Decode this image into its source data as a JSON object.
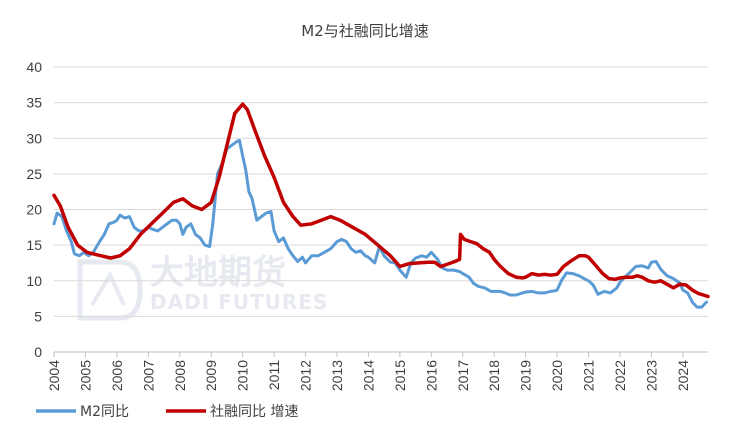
{
  "chart_data": {
    "type": "line",
    "title": "M2与社融同比增速",
    "watermark": {
      "cn": "大地期货",
      "en": "DADI FUTURES"
    },
    "x_ticks": [
      "2004",
      "2005",
      "2006",
      "2007",
      "2008",
      "2009",
      "2010",
      "2011",
      "2012",
      "2013",
      "2014",
      "2015",
      "2016",
      "2017",
      "2018",
      "2019",
      "2020",
      "2021",
      "2022",
      "2023",
      "2024"
    ],
    "y_ticks": [
      "0",
      "5",
      "10",
      "15",
      "20",
      "25",
      "30",
      "35",
      "40"
    ],
    "xlim": [
      2004,
      2024.8
    ],
    "ylim": [
      0,
      40
    ],
    "grid": "horizontal",
    "legend_position": "bottom-left",
    "series": [
      {
        "name": "M2同比",
        "color": "#5b9bd5",
        "points": [
          [
            2004.0,
            18.0
          ],
          [
            2004.1,
            19.5
          ],
          [
            2004.25,
            19.0
          ],
          [
            2004.4,
            17.0
          ],
          [
            2004.55,
            15.5
          ],
          [
            2004.65,
            13.8
          ],
          [
            2004.8,
            13.5
          ],
          [
            2004.95,
            14.0
          ],
          [
            2005.1,
            13.5
          ],
          [
            2005.25,
            14.0
          ],
          [
            2005.45,
            15.5
          ],
          [
            2005.6,
            16.5
          ],
          [
            2005.75,
            18.0
          ],
          [
            2005.9,
            18.2
          ],
          [
            2006.0,
            18.5
          ],
          [
            2006.1,
            19.2
          ],
          [
            2006.25,
            18.8
          ],
          [
            2006.4,
            19.0
          ],
          [
            2006.55,
            17.5
          ],
          [
            2006.7,
            17.0
          ],
          [
            2006.85,
            17.0
          ],
          [
            2007.0,
            17.5
          ],
          [
            2007.15,
            17.2
          ],
          [
            2007.3,
            17.0
          ],
          [
            2007.45,
            17.5
          ],
          [
            2007.6,
            18.0
          ],
          [
            2007.75,
            18.5
          ],
          [
            2007.9,
            18.5
          ],
          [
            2008.0,
            18.0
          ],
          [
            2008.1,
            16.5
          ],
          [
            2008.2,
            17.5
          ],
          [
            2008.35,
            18.0
          ],
          [
            2008.5,
            16.5
          ],
          [
            2008.65,
            16.0
          ],
          [
            2008.8,
            15.0
          ],
          [
            2008.95,
            14.8
          ],
          [
            2009.05,
            18.0
          ],
          [
            2009.2,
            25.0
          ],
          [
            2009.35,
            26.5
          ],
          [
            2009.5,
            28.5
          ],
          [
            2009.65,
            29.0
          ],
          [
            2009.8,
            29.5
          ],
          [
            2009.9,
            29.7
          ],
          [
            2010.0,
            27.5
          ],
          [
            2010.1,
            25.5
          ],
          [
            2010.2,
            22.5
          ],
          [
            2010.3,
            21.5
          ],
          [
            2010.45,
            18.5
          ],
          [
            2010.6,
            19.0
          ],
          [
            2010.75,
            19.5
          ],
          [
            2010.9,
            19.7
          ],
          [
            2011.0,
            17.0
          ],
          [
            2011.15,
            15.5
          ],
          [
            2011.3,
            16.0
          ],
          [
            2011.45,
            14.5
          ],
          [
            2011.6,
            13.5
          ],
          [
            2011.75,
            12.7
          ],
          [
            2011.9,
            13.3
          ],
          [
            2012.0,
            12.5
          ],
          [
            2012.2,
            13.5
          ],
          [
            2012.4,
            13.5
          ],
          [
            2012.6,
            14.0
          ],
          [
            2012.8,
            14.5
          ],
          [
            2013.0,
            15.5
          ],
          [
            2013.15,
            15.8
          ],
          [
            2013.3,
            15.5
          ],
          [
            2013.45,
            14.5
          ],
          [
            2013.6,
            14.0
          ],
          [
            2013.75,
            14.2
          ],
          [
            2013.9,
            13.5
          ],
          [
            2014.0,
            13.3
          ],
          [
            2014.2,
            12.5
          ],
          [
            2014.35,
            14.8
          ],
          [
            2014.5,
            13.5
          ],
          [
            2014.7,
            12.6
          ],
          [
            2014.85,
            12.5
          ],
          [
            2015.0,
            11.5
          ],
          [
            2015.2,
            10.5
          ],
          [
            2015.35,
            12.5
          ],
          [
            2015.5,
            13.2
          ],
          [
            2015.7,
            13.5
          ],
          [
            2015.85,
            13.3
          ],
          [
            2016.0,
            14.0
          ],
          [
            2016.2,
            13.0
          ],
          [
            2016.35,
            11.8
          ],
          [
            2016.5,
            11.5
          ],
          [
            2016.7,
            11.5
          ],
          [
            2016.9,
            11.3
          ],
          [
            2017.0,
            11.0
          ],
          [
            2017.2,
            10.5
          ],
          [
            2017.35,
            9.6
          ],
          [
            2017.5,
            9.2
          ],
          [
            2017.7,
            9.0
          ],
          [
            2017.9,
            8.5
          ],
          [
            2018.0,
            8.5
          ],
          [
            2018.2,
            8.5
          ],
          [
            2018.35,
            8.3
          ],
          [
            2018.5,
            8.0
          ],
          [
            2018.7,
            8.0
          ],
          [
            2018.9,
            8.3
          ],
          [
            2019.0,
            8.4
          ],
          [
            2019.2,
            8.5
          ],
          [
            2019.4,
            8.3
          ],
          [
            2019.6,
            8.3
          ],
          [
            2019.8,
            8.5
          ],
          [
            2019.95,
            8.6
          ],
          [
            2020.0,
            8.7
          ],
          [
            2020.15,
            10.1
          ],
          [
            2020.3,
            11.1
          ],
          [
            2020.5,
            11.0
          ],
          [
            2020.7,
            10.7
          ],
          [
            2020.9,
            10.2
          ],
          [
            2021.0,
            10.0
          ],
          [
            2021.15,
            9.4
          ],
          [
            2021.3,
            8.1
          ],
          [
            2021.5,
            8.5
          ],
          [
            2021.7,
            8.3
          ],
          [
            2021.9,
            9.0
          ],
          [
            2022.0,
            9.8
          ],
          [
            2022.15,
            10.5
          ],
          [
            2022.3,
            11.1
          ],
          [
            2022.5,
            12.0
          ],
          [
            2022.7,
            12.1
          ],
          [
            2022.9,
            11.8
          ],
          [
            2023.0,
            12.6
          ],
          [
            2023.15,
            12.7
          ],
          [
            2023.3,
            11.6
          ],
          [
            2023.5,
            10.7
          ],
          [
            2023.7,
            10.3
          ],
          [
            2023.9,
            9.7
          ],
          [
            2024.0,
            8.7
          ],
          [
            2024.15,
            8.3
          ],
          [
            2024.3,
            7.0
          ],
          [
            2024.45,
            6.3
          ],
          [
            2024.6,
            6.3
          ],
          [
            2024.75,
            7.0
          ]
        ]
      },
      {
        "name": "社融同比 增速",
        "color": "#c00000",
        "points": [
          [
            2004.0,
            22.0
          ],
          [
            2004.2,
            20.5
          ],
          [
            2004.45,
            17.5
          ],
          [
            2004.75,
            15.0
          ],
          [
            2005.05,
            14.0
          ],
          [
            2005.4,
            13.6
          ],
          [
            2005.8,
            13.2
          ],
          [
            2006.1,
            13.5
          ],
          [
            2006.4,
            14.5
          ],
          [
            2006.75,
            16.5
          ],
          [
            2007.1,
            18.0
          ],
          [
            2007.45,
            19.5
          ],
          [
            2007.8,
            21.0
          ],
          [
            2008.1,
            21.5
          ],
          [
            2008.4,
            20.5
          ],
          [
            2008.7,
            20.0
          ],
          [
            2009.0,
            21.0
          ],
          [
            2009.25,
            24.5
          ],
          [
            2009.5,
            29.0
          ],
          [
            2009.75,
            33.5
          ],
          [
            2010.0,
            34.8
          ],
          [
            2010.15,
            34.0
          ],
          [
            2010.4,
            31.0
          ],
          [
            2010.7,
            27.5
          ],
          [
            2011.0,
            24.5
          ],
          [
            2011.3,
            21.0
          ],
          [
            2011.6,
            19.0
          ],
          [
            2011.85,
            17.8
          ],
          [
            2012.2,
            18.0
          ],
          [
            2012.5,
            18.5
          ],
          [
            2012.8,
            19.0
          ],
          [
            2013.1,
            18.5
          ],
          [
            2013.5,
            17.5
          ],
          [
            2013.9,
            16.5
          ],
          [
            2014.3,
            15.0
          ],
          [
            2014.7,
            13.5
          ],
          [
            2015.0,
            12.0
          ],
          [
            2015.3,
            12.4
          ],
          [
            2015.6,
            12.5
          ],
          [
            2015.9,
            12.6
          ],
          [
            2016.1,
            12.6
          ],
          [
            2016.3,
            12.0
          ],
          [
            2016.5,
            12.3
          ],
          [
            2016.75,
            12.7
          ],
          [
            2016.9,
            13.0
          ],
          [
            2016.93,
            16.5
          ],
          [
            2017.05,
            15.8
          ],
          [
            2017.25,
            15.5
          ],
          [
            2017.45,
            15.2
          ],
          [
            2017.65,
            14.5
          ],
          [
            2017.85,
            14.0
          ],
          [
            2018.0,
            13.0
          ],
          [
            2018.2,
            12.0
          ],
          [
            2018.45,
            11.0
          ],
          [
            2018.7,
            10.5
          ],
          [
            2018.9,
            10.4
          ],
          [
            2019.0,
            10.5
          ],
          [
            2019.2,
            11.0
          ],
          [
            2019.4,
            10.8
          ],
          [
            2019.6,
            10.9
          ],
          [
            2019.8,
            10.8
          ],
          [
            2020.0,
            10.9
          ],
          [
            2020.2,
            12.0
          ],
          [
            2020.45,
            12.8
          ],
          [
            2020.7,
            13.5
          ],
          [
            2020.9,
            13.5
          ],
          [
            2021.0,
            13.3
          ],
          [
            2021.2,
            12.3
          ],
          [
            2021.45,
            11.0
          ],
          [
            2021.65,
            10.3
          ],
          [
            2021.85,
            10.2
          ],
          [
            2022.0,
            10.4
          ],
          [
            2022.2,
            10.5
          ],
          [
            2022.4,
            10.5
          ],
          [
            2022.55,
            10.7
          ],
          [
            2022.7,
            10.5
          ],
          [
            2022.9,
            10.0
          ],
          [
            2023.1,
            9.8
          ],
          [
            2023.3,
            10.0
          ],
          [
            2023.5,
            9.5
          ],
          [
            2023.7,
            9.0
          ],
          [
            2023.9,
            9.5
          ],
          [
            2024.1,
            9.4
          ],
          [
            2024.3,
            8.7
          ],
          [
            2024.5,
            8.2
          ],
          [
            2024.65,
            8.0
          ],
          [
            2024.8,
            7.8
          ]
        ]
      }
    ]
  }
}
